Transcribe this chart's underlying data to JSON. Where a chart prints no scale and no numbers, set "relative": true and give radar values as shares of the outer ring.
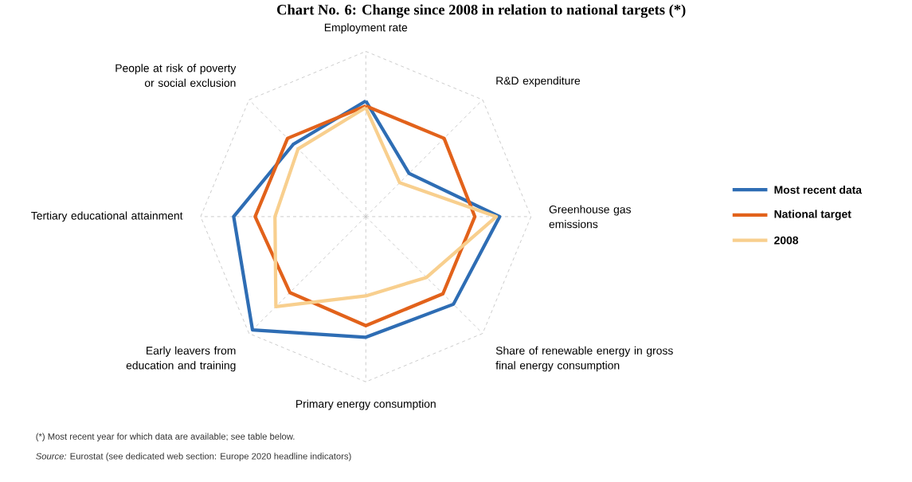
{
  "chart_data": {
    "type": "radar",
    "title": "Chart No. 6: Change since 2008 in relation to national targets (*)",
    "categories": [
      "Employment rate",
      "R&D expenditure",
      "Greenhouse gas emissions",
      "Share of renewable energy in gross final energy consumption",
      "Primary energy consumption",
      "Early leavers from education and training",
      "Tertiary educational attainment",
      "People at risk of poverty or social exclusion"
    ],
    "relative": true,
    "grid": true,
    "legend": "right",
    "line_style": "solid",
    "marker": "none",
    "series": [
      {
        "name": "Most recent data",
        "color": "#2e6db4",
        "values": [
          0.7,
          0.37,
          0.81,
          0.75,
          0.73,
          0.97,
          0.8,
          0.62
        ]
      },
      {
        "name": "National target",
        "color": "#e2621b",
        "values": [
          0.67,
          0.67,
          0.66,
          0.66,
          0.66,
          0.65,
          0.67,
          0.67
        ]
      },
      {
        "name": "2008",
        "color": "#f8cf8e",
        "values": [
          0.66,
          0.29,
          0.79,
          0.52,
          0.48,
          0.77,
          0.55,
          0.58
        ]
      }
    ],
    "annotations": [
      "(*) Most recent year for which data are available; see table below.",
      "*Source:* Eurostat (see dedicated web section: Europe 2020 headline indicators)"
    ]
  }
}
